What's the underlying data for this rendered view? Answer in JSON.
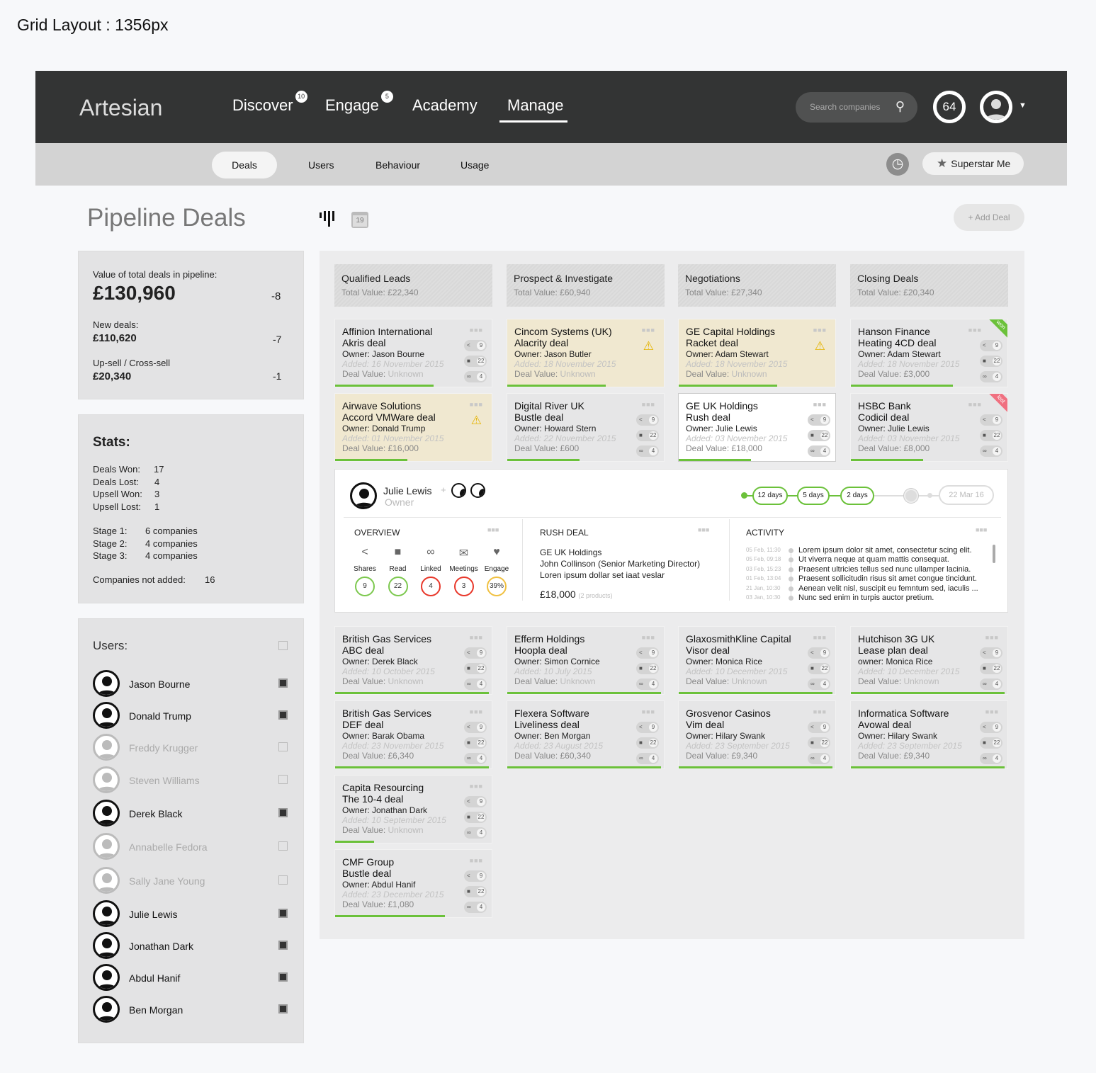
{
  "page_label": "Grid Layout : 1356px",
  "app": {
    "logo": "Artesian",
    "nav": [
      {
        "label": "Discover",
        "badge": "10"
      },
      {
        "label": "Engage",
        "badge": "5"
      },
      {
        "label": "Academy",
        "badge": null
      },
      {
        "label": "Manage",
        "badge": null,
        "active": true
      }
    ],
    "search_placeholder": "Search companies",
    "score": "64"
  },
  "subnav": {
    "tabs": [
      "Deals",
      "Users",
      "Behaviour",
      "Usage"
    ],
    "active": "Deals",
    "superstar": "Superstar Me"
  },
  "title": "Pipeline Deals",
  "calendar_day": "19",
  "add_deal": "+ Add Deal",
  "summary": {
    "total_label": "Value of total deals in pipeline:",
    "total": "£130,960",
    "total_delta": "-8",
    "new_label": "New deals:",
    "new": "£110,620",
    "new_delta": "-7",
    "upsell_label": "Up-sell / Cross-sell",
    "upsell": "£20,340",
    "upsell_delta": "-1"
  },
  "stats": {
    "title": "Stats:",
    "rows": [
      [
        "Deals Won:",
        "17"
      ],
      [
        "Deals Lost:",
        "4"
      ],
      [
        "Upsell Won:",
        "3"
      ],
      [
        "Upsell Lost:",
        "1"
      ]
    ],
    "stages": [
      [
        "Stage 1:",
        "6 companies"
      ],
      [
        "Stage 2:",
        "4 companies"
      ],
      [
        "Stage 3:",
        "4 companies"
      ]
    ],
    "not_added": [
      "Companies not added:",
      "16"
    ]
  },
  "users": {
    "title": "Users:",
    "list": [
      {
        "name": "Jason Bourne",
        "active": true
      },
      {
        "name": "Donald Trump",
        "active": true
      },
      {
        "name": "Freddy Krugger",
        "active": false
      },
      {
        "name": "Steven Williams",
        "active": false
      },
      {
        "name": "Derek Black",
        "active": true
      },
      {
        "name": "Annabelle Fedora",
        "active": false
      },
      {
        "name": "Sally Jane Young",
        "active": false
      },
      {
        "name": "Julie Lewis",
        "active": true
      },
      {
        "name": "Jonathan Dark",
        "active": true
      },
      {
        "name": "Abdul Hanif",
        "active": true
      },
      {
        "name": "Ben Morgan",
        "active": true
      }
    ]
  },
  "columns": [
    {
      "name": "Qualified Leads",
      "total": "Total Value: £22,340"
    },
    {
      "name": "Prospect & Investigate",
      "total": "Total Value: £60,940"
    },
    {
      "name": "Negotiations",
      "total": "Total Value: £27,340"
    },
    {
      "name": "Closing Deals",
      "total": "Total Value: £20,340"
    }
  ],
  "cards": [
    {
      "col": 0,
      "row": 0,
      "company": "Affinion International",
      "deal": "Akris deal",
      "owner": "Owner: Jason Bourne",
      "added": "Added: 16 November 2015",
      "value": "Unknown",
      "shares": "9",
      "comments": "22",
      "links": "4",
      "progress": 0.63
    },
    {
      "col": 1,
      "row": 0,
      "company": "Cincom Systems (UK)",
      "deal": "Alacrity deal",
      "owner": "Owner: Jason Butler",
      "added": "Added: 18 November 2015",
      "value": "Unknown",
      "warning": true,
      "progress": 0.63
    },
    {
      "col": 2,
      "row": 0,
      "company": "GE Capital Holdings",
      "deal": "Racket deal",
      "owner": "Owner: Adam Stewart",
      "added": "Added: 18 November 2015",
      "value": "Unknown",
      "warning": true,
      "progress": 0.63
    },
    {
      "col": 3,
      "row": 0,
      "company": "Hanson Finance",
      "deal": "Heating 4CD deal",
      "owner": "Owner: Adam Stewart",
      "added": "Added: 18 November 2015",
      "value": "£3,000",
      "shares": "9",
      "comments": "22",
      "links": "4",
      "ribbon": "won",
      "progress": 0.65
    },
    {
      "col": 0,
      "row": 1,
      "company": "Airwave Solutions",
      "deal": "Accord VMWare deal",
      "owner": "Owner: Donald Trump",
      "added": "Added: 01 November 2015",
      "value": "£16,000",
      "warning": true,
      "progress": 0.46
    },
    {
      "col": 1,
      "row": 1,
      "company": "Digital River UK",
      "deal": "Bustle deal",
      "owner": "Owner: Howard Stern",
      "added": "Added: 22 November 2015",
      "value": "£600",
      "shares": "9",
      "comments": "22",
      "links": "4",
      "progress": 0.46
    },
    {
      "col": 2,
      "row": 1,
      "company": "GE UK Holdings",
      "deal": "Rush deal",
      "owner": "Owner: Julie Lewis",
      "added": "Added: 03 November 2015",
      "value": "£18,000",
      "shares": "9",
      "comments": "22",
      "links": "4",
      "selected": true,
      "progress": 0.46
    },
    {
      "col": 3,
      "row": 1,
      "company": "HSBC Bank",
      "deal": "Codicil deal",
      "owner": "Owner: Julie Lewis",
      "added": "Added: 03 November 2015",
      "value": "£8,000",
      "shares": "9",
      "comments": "22",
      "links": "4",
      "ribbon": "lost",
      "progress": 0.46
    },
    {
      "col": 0,
      "row": 2,
      "company": "British Gas Services",
      "deal": "ABC deal",
      "owner": "Owner: Derek Black",
      "added": "Added: 10 October 2015",
      "value": "Unknown",
      "shares": "9",
      "comments": "22",
      "links": "4",
      "progress": 0.98
    },
    {
      "col": 1,
      "row": 2,
      "company": "Efferm Holdings",
      "deal": "Hoopla deal",
      "owner": "Owner: Simon Cornice",
      "added": "Added: 10 July 2015",
      "value": "Unknown",
      "shares": "9",
      "comments": "22",
      "links": "4",
      "progress": 0.98
    },
    {
      "col": 2,
      "row": 2,
      "company": "GlaxosmithKline Capital",
      "deal": "Visor deal",
      "owner": "Owner: Monica Rice",
      "added": "Added: 10 December 2015",
      "value": "Unknown",
      "shares": "9",
      "comments": "22",
      "links": "4",
      "progress": 0.98
    },
    {
      "col": 3,
      "row": 2,
      "company": "Hutchison 3G UK",
      "deal": "Lease plan deal",
      "owner": "owner: Monica Rice",
      "added": "Added: 10 December 2015",
      "value": "Unknown",
      "shares": "9",
      "comments": "22",
      "links": "4",
      "progress": 0.98
    },
    {
      "col": 0,
      "row": 3,
      "company": "British Gas Services",
      "deal": "DEF deal",
      "owner": "Owner: Barak Obama",
      "added": "Added: 23 November 2015",
      "value": "£6,340",
      "shares": "9",
      "comments": "22",
      "links": "4",
      "progress": 0.98
    },
    {
      "col": 1,
      "row": 3,
      "company": "Flexera Software",
      "deal": "Liveliness deal",
      "owner": "Owner: Ben Morgan",
      "added": "Added: 23 August 2015",
      "value": "£60,340",
      "shares": "9",
      "comments": "22",
      "links": "4",
      "progress": 0.98
    },
    {
      "col": 2,
      "row": 3,
      "company": "Grosvenor Casinos",
      "deal": "Vim deal",
      "owner": "Owner: Hilary Swank",
      "added": "Added: 23 September 2015",
      "value": "£9,340",
      "shares": "9",
      "comments": "22",
      "links": "4",
      "progress": 0.98
    },
    {
      "col": 3,
      "row": 3,
      "company": "Informatica Software",
      "deal": "Avowal deal",
      "owner": "Owner: Hilary Swank",
      "added": "Added: 23 September 2015",
      "value": "£9,340",
      "shares": "9",
      "comments": "22",
      "links": "4",
      "progress": 0.98
    },
    {
      "col": 0,
      "row": 4,
      "company": "Capita Resourcing",
      "deal": "The 10-4 deal",
      "owner": "Owner: Jonathan Dark",
      "added": "Added: 10 September 2015",
      "value": "Unknown",
      "shares": "9",
      "comments": "22",
      "links": "4",
      "progress": 0.25
    },
    {
      "col": 0,
      "row": 5,
      "company": "CMF Group",
      "deal": "Bustle deal",
      "owner": "Owner: Abdul Hanif",
      "added": "Added: 23 December 2015",
      "value": "£1,080",
      "shares": "9",
      "comments": "22",
      "links": "4",
      "progress": 0.7
    }
  ],
  "deal_value_label": "Deal Value:",
  "detail": {
    "owner_name": "Julie Lewis",
    "owner_role": "Owner",
    "plus": "+",
    "stages": [
      "12 days",
      "5 days",
      "2 days"
    ],
    "end_date": "22 Mar 16",
    "overview": {
      "title": "OVERVIEW",
      "metrics": [
        {
          "label": "Shares",
          "value": "9",
          "color": "#7cc84e",
          "icon": "share-icon"
        },
        {
          "label": "Read",
          "value": "22",
          "color": "#7cc84e",
          "icon": "comment-icon"
        },
        {
          "label": "Linked",
          "value": "4",
          "color": "#e8372a",
          "icon": "link-icon"
        },
        {
          "label": "Meetings",
          "value": "3",
          "color": "#e8372a",
          "icon": "mail-icon"
        },
        {
          "label": "Engage",
          "value": "39%",
          "color": "#f0c040",
          "icon": "heart-icon"
        }
      ]
    },
    "rush": {
      "title": "RUSH DEAL",
      "company": "GE UK Holdings",
      "contact": "John Collinson (Senior Marketing Director)",
      "note": "Loren ipsum dollar set iaat veslar",
      "value": "£18,000",
      "products": "(2 products)"
    },
    "activity": {
      "title": "ACTIVITY",
      "items": [
        {
          "time": "05 Feb, 11:30",
          "text": "Lorem ipsum dolor sit amet, consectetur scing elit."
        },
        {
          "time": "05 Feb, 09:18",
          "text": "Ut viverra neque at quam mattis consequat."
        },
        {
          "time": "03 Feb, 15:23",
          "text": "Praesent ultricies tellus sed nunc ullamper lacinia."
        },
        {
          "time": "01 Feb, 13:04",
          "text": "Praesent sollicitudin risus sit amet congue tincidunt."
        },
        {
          "time": "21 Jan, 10:30",
          "text": "Aenean velit nisl, suscipit eu femntum sed, iaculis ..."
        },
        {
          "time": "03 Jan, 10:30",
          "text": "Nunc sed enim in turpis auctor pretium."
        }
      ]
    }
  }
}
